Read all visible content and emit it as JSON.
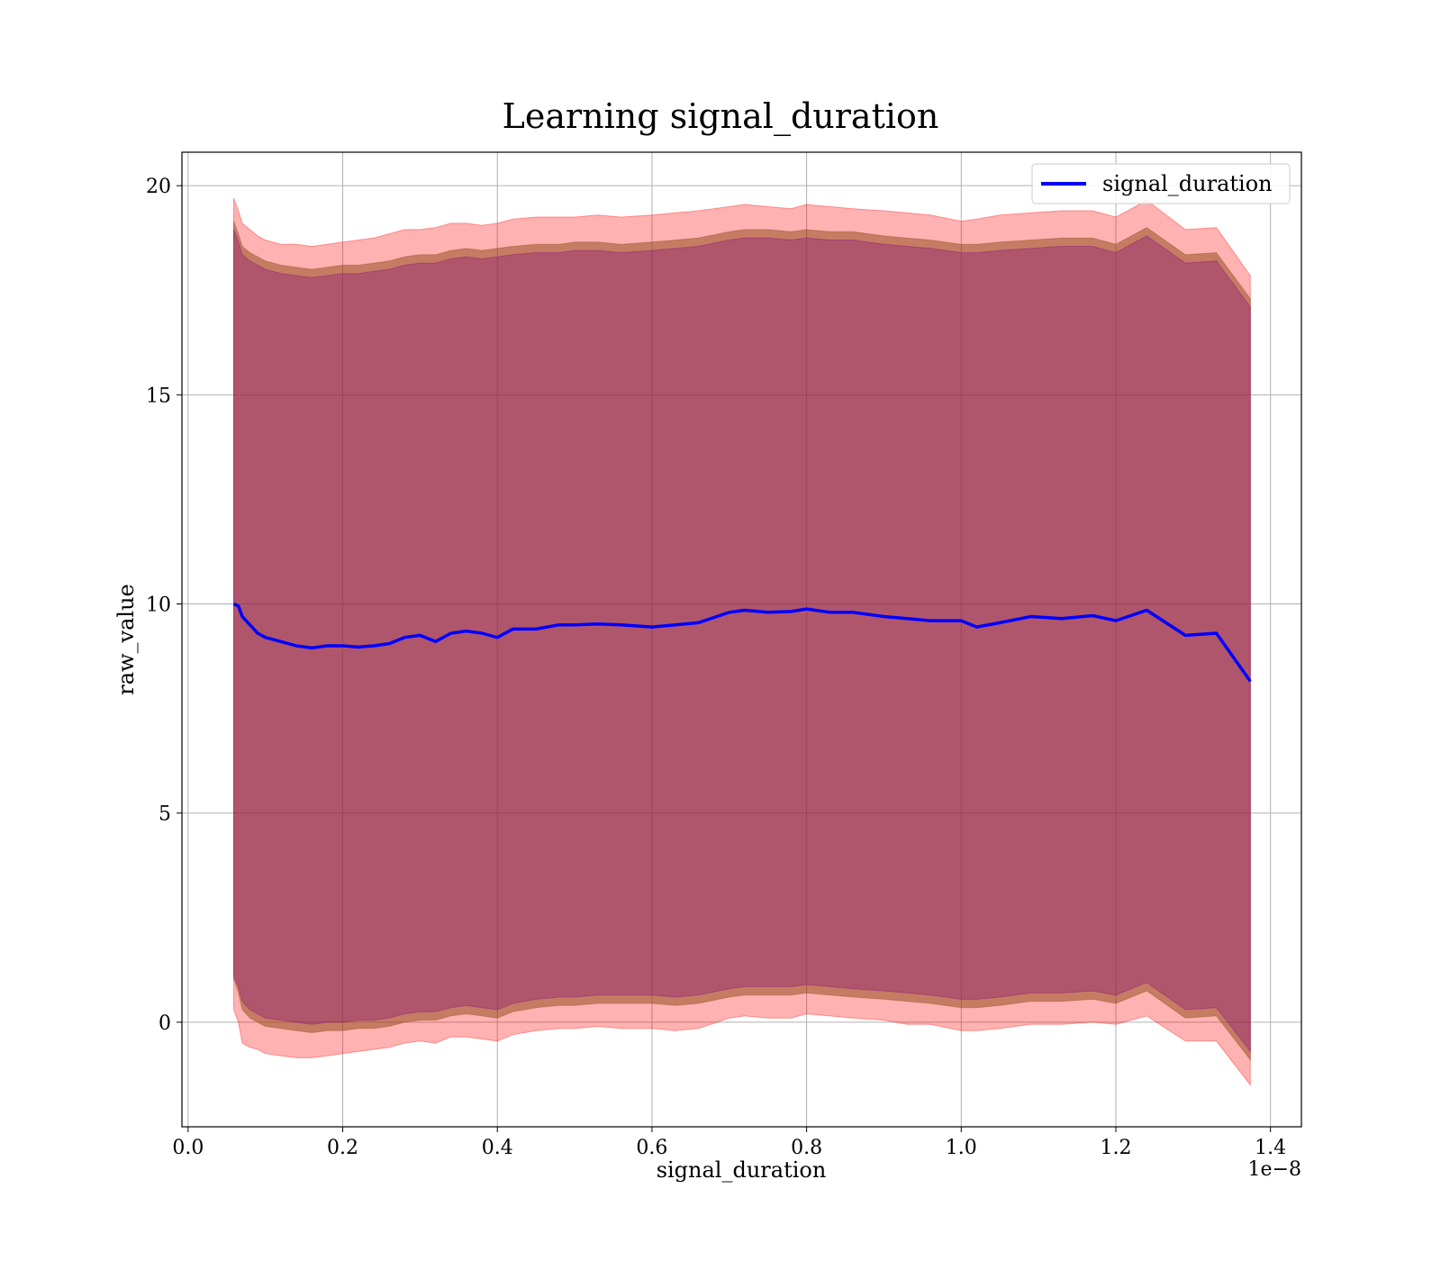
{
  "chart_data": {
    "type": "line",
    "title": "Learning signal_duration",
    "xlabel": "signal_duration",
    "ylabel": "raw_value",
    "x_offset_label": "1e−8",
    "xlim": [
      -0.008,
      1.44
    ],
    "ylim": [
      -2.5,
      20.8
    ],
    "xticks": [
      0.0,
      0.2,
      0.4,
      0.6,
      0.8,
      1.0,
      1.2,
      1.4
    ],
    "xtick_labels": [
      "0.0",
      "0.2",
      "0.4",
      "0.6",
      "0.8",
      "1.0",
      "1.2",
      "1.4"
    ],
    "yticks": [
      0,
      5,
      10,
      15,
      20
    ],
    "ytick_labels": [
      "0",
      "5",
      "10",
      "15",
      "20"
    ],
    "grid": true,
    "legend_position": "top-right",
    "colors": {
      "line": "#0000ff",
      "band_outer": "#ff0000",
      "band_mid": "#8b4513",
      "band_inner": "#800080"
    },
    "x": [
      0.059,
      0.065,
      0.07,
      0.08,
      0.09,
      0.1,
      0.12,
      0.14,
      0.16,
      0.18,
      0.2,
      0.22,
      0.24,
      0.26,
      0.28,
      0.3,
      0.32,
      0.34,
      0.36,
      0.38,
      0.4,
      0.42,
      0.45,
      0.48,
      0.5,
      0.53,
      0.56,
      0.6,
      0.63,
      0.66,
      0.7,
      0.72,
      0.75,
      0.78,
      0.8,
      0.83,
      0.86,
      0.9,
      0.93,
      0.96,
      1.0,
      1.02,
      1.05,
      1.09,
      1.13,
      1.17,
      1.2,
      1.24,
      1.29,
      1.33,
      1.374
    ],
    "series": [
      {
        "name": "signal_duration",
        "values": [
          10.0,
          9.95,
          9.7,
          9.5,
          9.3,
          9.2,
          9.1,
          9.0,
          8.95,
          9.0,
          9.0,
          8.97,
          9.0,
          9.05,
          9.2,
          9.25,
          9.1,
          9.3,
          9.35,
          9.3,
          9.2,
          9.4,
          9.4,
          9.5,
          9.5,
          9.52,
          9.5,
          9.45,
          9.5,
          9.55,
          9.8,
          9.85,
          9.8,
          9.82,
          9.88,
          9.8,
          9.8,
          9.7,
          9.65,
          9.6,
          9.6,
          9.45,
          9.55,
          9.7,
          9.65,
          9.72,
          9.6,
          9.85,
          9.25,
          9.3,
          8.15
        ]
      }
    ],
    "bands": [
      {
        "upper": [
          19.7,
          19.4,
          19.1,
          18.95,
          18.8,
          18.7,
          18.6,
          18.6,
          18.55,
          18.6,
          18.65,
          18.7,
          18.75,
          18.85,
          18.95,
          18.95,
          19.0,
          19.1,
          19.1,
          19.05,
          19.1,
          19.2,
          19.25,
          19.25,
          19.25,
          19.3,
          19.25,
          19.3,
          19.35,
          19.4,
          19.5,
          19.55,
          19.5,
          19.45,
          19.55,
          19.5,
          19.45,
          19.4,
          19.35,
          19.3,
          19.15,
          19.2,
          19.3,
          19.35,
          19.4,
          19.4,
          19.25,
          19.65,
          18.95,
          19.0,
          17.85
        ],
        "lower": [
          0.3,
          0.0,
          -0.5,
          -0.6,
          -0.65,
          -0.75,
          -0.8,
          -0.85,
          -0.85,
          -0.8,
          -0.75,
          -0.7,
          -0.65,
          -0.6,
          -0.5,
          -0.45,
          -0.5,
          -0.35,
          -0.35,
          -0.4,
          -0.45,
          -0.3,
          -0.2,
          -0.15,
          -0.15,
          -0.1,
          -0.15,
          -0.15,
          -0.2,
          -0.15,
          0.1,
          0.15,
          0.1,
          0.1,
          0.2,
          0.15,
          0.1,
          0.05,
          -0.05,
          -0.05,
          -0.2,
          -0.2,
          -0.15,
          -0.05,
          -0.05,
          0.0,
          -0.05,
          0.15,
          -0.45,
          -0.45,
          -1.5
        ]
      },
      {
        "upper": [
          19.15,
          18.85,
          18.55,
          18.4,
          18.3,
          18.2,
          18.1,
          18.05,
          18.0,
          18.05,
          18.1,
          18.1,
          18.15,
          18.2,
          18.3,
          18.35,
          18.35,
          18.45,
          18.5,
          18.45,
          18.5,
          18.55,
          18.6,
          18.6,
          18.65,
          18.65,
          18.6,
          18.65,
          18.7,
          18.75,
          18.9,
          18.95,
          18.95,
          18.9,
          18.95,
          18.9,
          18.9,
          18.8,
          18.75,
          18.7,
          18.6,
          18.6,
          18.65,
          18.7,
          18.75,
          18.75,
          18.6,
          19.0,
          18.35,
          18.4,
          17.3
        ],
        "lower": [
          1.05,
          0.7,
          0.3,
          0.1,
          0.0,
          -0.1,
          -0.15,
          -0.2,
          -0.25,
          -0.2,
          -0.2,
          -0.15,
          -0.15,
          -0.1,
          0.0,
          0.05,
          0.05,
          0.15,
          0.2,
          0.15,
          0.1,
          0.25,
          0.35,
          0.4,
          0.4,
          0.45,
          0.45,
          0.45,
          0.4,
          0.45,
          0.6,
          0.65,
          0.65,
          0.65,
          0.7,
          0.65,
          0.6,
          0.55,
          0.5,
          0.45,
          0.35,
          0.35,
          0.4,
          0.5,
          0.5,
          0.55,
          0.45,
          0.75,
          0.1,
          0.15,
          -0.9
        ]
      },
      {
        "upper": [
          18.95,
          18.65,
          18.35,
          18.2,
          18.1,
          18.0,
          17.9,
          17.85,
          17.8,
          17.85,
          17.9,
          17.9,
          17.95,
          18.0,
          18.1,
          18.15,
          18.15,
          18.25,
          18.3,
          18.25,
          18.3,
          18.35,
          18.4,
          18.4,
          18.45,
          18.45,
          18.4,
          18.45,
          18.5,
          18.55,
          18.7,
          18.75,
          18.75,
          18.7,
          18.75,
          18.7,
          18.7,
          18.6,
          18.55,
          18.5,
          18.4,
          18.4,
          18.45,
          18.5,
          18.55,
          18.55,
          18.4,
          18.8,
          18.15,
          18.2,
          17.1
        ],
        "lower": [
          1.1,
          0.85,
          0.5,
          0.3,
          0.2,
          0.1,
          0.05,
          0.0,
          -0.05,
          0.0,
          0.0,
          0.05,
          0.05,
          0.1,
          0.2,
          0.25,
          0.25,
          0.35,
          0.4,
          0.35,
          0.3,
          0.45,
          0.55,
          0.6,
          0.6,
          0.65,
          0.65,
          0.65,
          0.6,
          0.65,
          0.8,
          0.85,
          0.85,
          0.85,
          0.9,
          0.85,
          0.8,
          0.75,
          0.7,
          0.65,
          0.55,
          0.55,
          0.6,
          0.7,
          0.7,
          0.75,
          0.65,
          0.95,
          0.3,
          0.35,
          -0.7
        ]
      }
    ]
  }
}
